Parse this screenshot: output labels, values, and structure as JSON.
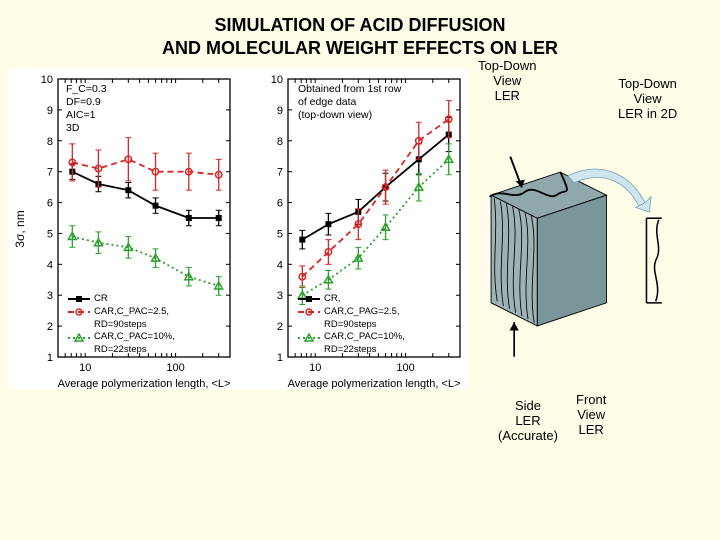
{
  "title_line1": "SIMULATION OF ACID DIFFUSION",
  "title_line2": "AND MOLECULAR WEIGHT EFFECTS ON LER",
  "background_color": "#fffde8",
  "charts_panel": {
    "bg": "#ffffff"
  },
  "ylabel": "3σ, nm",
  "xlabel": "Average polymerization length, <L>",
  "chart_left": {
    "type": "line-error-logx",
    "x_ticks": [
      10,
      100
    ],
    "y_lim": [
      1,
      10
    ],
    "y_ticks": [
      1,
      2,
      3,
      4,
      5,
      6,
      7,
      8,
      9,
      10
    ],
    "xlim": [
      5,
      400
    ],
    "params_text": [
      "F_C=0.3",
      "DF=0.9",
      "AIC=1",
      "3D"
    ],
    "series": [
      {
        "name": "CR",
        "color": "#000000",
        "dash": "",
        "marker": "square",
        "points": [
          {
            "x": 7.2,
            "y": 7.0,
            "err": 0.25
          },
          {
            "x": 14,
            "y": 6.6,
            "err": 0.25
          },
          {
            "x": 30,
            "y": 6.4,
            "err": 0.25
          },
          {
            "x": 60,
            "y": 5.9,
            "err": 0.25
          },
          {
            "x": 140,
            "y": 5.5,
            "err": 0.25
          },
          {
            "x": 300,
            "y": 5.5,
            "err": 0.25
          }
        ]
      },
      {
        "name": "CAR,C_PAG=2.5, RD=90steps",
        "color": "#d62728",
        "dash": "6,4",
        "marker": "circle",
        "points": [
          {
            "x": 7.2,
            "y": 7.3,
            "err": 0.6
          },
          {
            "x": 14,
            "y": 7.1,
            "err": 0.6
          },
          {
            "x": 30,
            "y": 7.4,
            "err": 0.7
          },
          {
            "x": 60,
            "y": 7.0,
            "err": 0.6
          },
          {
            "x": 140,
            "y": 7.0,
            "err": 0.6
          },
          {
            "x": 300,
            "y": 6.9,
            "err": 0.5
          }
        ]
      },
      {
        "name": "CAR,C_PAC=10%, RD=22steps",
        "color": "#2ca02c",
        "dash": "2,3",
        "marker": "triangle",
        "points": [
          {
            "x": 7.2,
            "y": 4.9,
            "err": 0.35
          },
          {
            "x": 14,
            "y": 4.7,
            "err": 0.35
          },
          {
            "x": 30,
            "y": 4.55,
            "err": 0.35
          },
          {
            "x": 60,
            "y": 4.2,
            "err": 0.3
          },
          {
            "x": 140,
            "y": 3.6,
            "err": 0.3
          },
          {
            "x": 300,
            "y": 3.3,
            "err": 0.3
          }
        ]
      }
    ],
    "legend": [
      {
        "label": "CR",
        "color": "#000000",
        "dash": "",
        "marker": "square"
      },
      {
        "label": "CAR,C_PAC=2.5,",
        "color": "#d62728",
        "dash": "6,4",
        "marker": "circle"
      },
      {
        "label": "RD=90steps",
        "color": "#d62728",
        "plain": true
      },
      {
        "label": "CAR,C_PAC=10%,",
        "color": "#2ca02c",
        "dash": "2,3",
        "marker": "triangle"
      },
      {
        "label": "RD=22steps",
        "color": "#2ca02c",
        "plain": true
      }
    ]
  },
  "chart_right": {
    "type": "line-error-logx",
    "x_ticks": [
      10,
      100
    ],
    "y_lim": [
      1,
      10
    ],
    "y_ticks": [
      1,
      2,
      3,
      4,
      5,
      6,
      7,
      8,
      9,
      10
    ],
    "xlim": [
      5,
      400
    ],
    "note_text": [
      "Obtained from 1st row",
      "of edge data",
      "(top-down view)"
    ],
    "series": [
      {
        "name": "CR",
        "color": "#000000",
        "dash": "",
        "marker": "square",
        "points": [
          {
            "x": 7.2,
            "y": 4.8,
            "err": 0.3
          },
          {
            "x": 14,
            "y": 5.3,
            "err": 0.35
          },
          {
            "x": 30,
            "y": 5.7,
            "err": 0.4
          },
          {
            "x": 60,
            "y": 6.5,
            "err": 0.45
          },
          {
            "x": 140,
            "y": 7.4,
            "err": 0.5
          },
          {
            "x": 300,
            "y": 8.2,
            "err": 0.55
          }
        ]
      },
      {
        "name": "CAR,C_PAG=2.5, RD=90steps",
        "color": "#d62728",
        "dash": "6,4",
        "marker": "circle",
        "points": [
          {
            "x": 7.2,
            "y": 3.6,
            "err": 0.35
          },
          {
            "x": 14,
            "y": 4.4,
            "err": 0.4
          },
          {
            "x": 30,
            "y": 5.3,
            "err": 0.5
          },
          {
            "x": 60,
            "y": 6.5,
            "err": 0.55
          },
          {
            "x": 140,
            "y": 8.0,
            "err": 0.6
          },
          {
            "x": 300,
            "y": 8.7,
            "err": 0.6
          }
        ]
      },
      {
        "name": "CAR,C_PAC=10%, RD=22steps",
        "color": "#2ca02c",
        "dash": "2,3",
        "marker": "triangle",
        "points": [
          {
            "x": 7.2,
            "y": 3.0,
            "err": 0.3
          },
          {
            "x": 14,
            "y": 3.5,
            "err": 0.3
          },
          {
            "x": 30,
            "y": 4.2,
            "err": 0.35
          },
          {
            "x": 60,
            "y": 5.2,
            "err": 0.4
          },
          {
            "x": 140,
            "y": 6.5,
            "err": 0.45
          },
          {
            "x": 300,
            "y": 7.4,
            "err": 0.5
          }
        ]
      }
    ],
    "legend": [
      {
        "label": "CR,",
        "color": "#000000",
        "dash": "",
        "marker": "square"
      },
      {
        "label": "CAR,C_PAG=2.5,",
        "color": "#d62728",
        "dash": "6,4",
        "marker": "circle"
      },
      {
        "label": "RD=90steps",
        "color": "#d62728",
        "plain": true
      },
      {
        "label": "CAR,C_PAC=10%,",
        "color": "#2ca02c",
        "dash": "2,3",
        "marker": "triangle"
      },
      {
        "label": "RD=22steps",
        "color": "#2ca02c",
        "plain": true
      }
    ]
  },
  "schematic": {
    "block_color": "#8ea8ab",
    "edge_color": "#000000",
    "arrow_fill": "#cfe6ef",
    "ann_topdown": "Top-Down\nView\nLER",
    "ann_topdown2d": "Top-Down\nView\nLER in 2D",
    "ann_side": "Side\nLER\n(Accurate)",
    "ann_front": "Front\nView\nLER"
  }
}
